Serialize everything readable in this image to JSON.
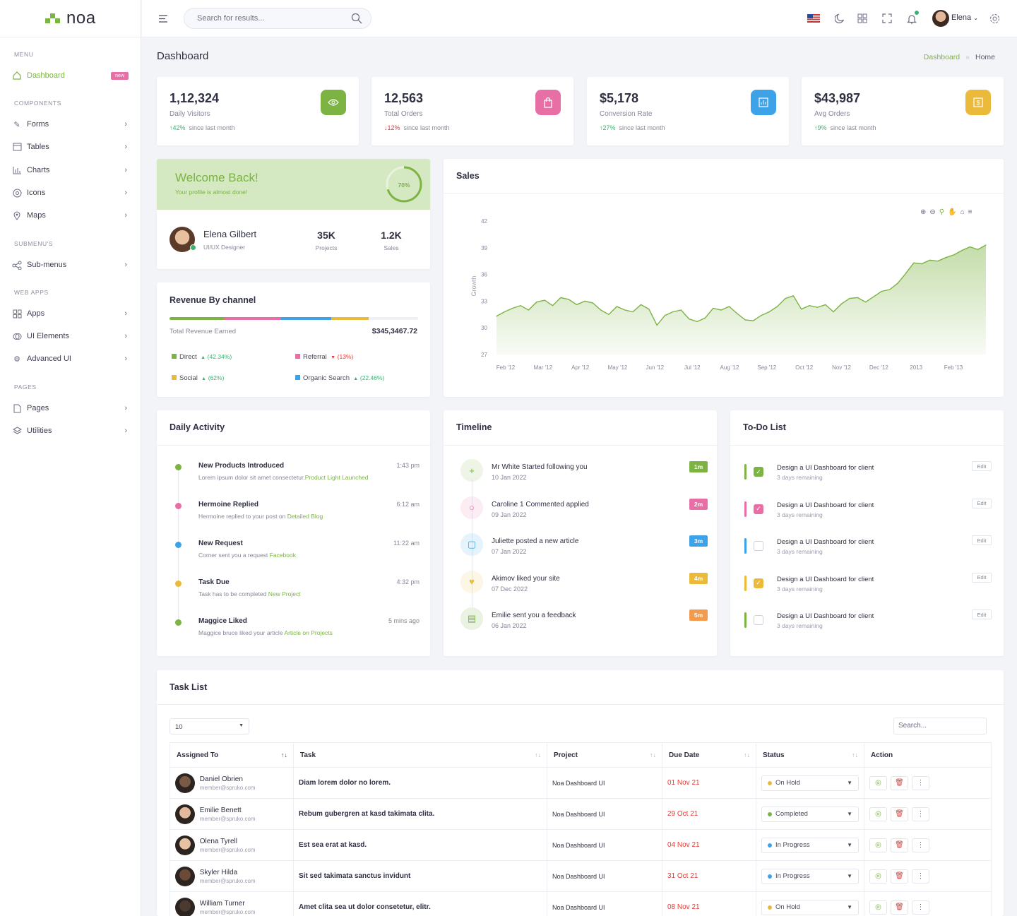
{
  "brand": {
    "name": "noa"
  },
  "sidebar": {
    "categories": [
      "MENU",
      "COMPONENTS",
      "SUBMENU'S",
      "WEB APPS",
      "PAGES"
    ],
    "items": [
      {
        "label": "Dashboard",
        "badge": "new",
        "active": true
      },
      {
        "label": "Forms"
      },
      {
        "label": "Tables"
      },
      {
        "label": "Charts"
      },
      {
        "label": "Icons"
      },
      {
        "label": "Maps"
      },
      {
        "label": "Sub-menus"
      },
      {
        "label": "Apps"
      },
      {
        "label": "UI Elements"
      },
      {
        "label": "Advanced UI"
      },
      {
        "label": "Pages"
      },
      {
        "label": "Utilities"
      }
    ]
  },
  "header": {
    "search_placeholder": "Search for results...",
    "user_name": "Elena"
  },
  "page": {
    "title": "Dashboard",
    "breadcrumb": [
      "Dashboard",
      "Home"
    ]
  },
  "stats": [
    {
      "value": "1,12,324",
      "label": "Daily Visitors",
      "trend": "42%",
      "direction": "up",
      "since": "since last month",
      "color": "#7cb342",
      "icon": "eye-icon"
    },
    {
      "value": "12,563",
      "label": "Total Orders",
      "trend": "12%",
      "direction": "down",
      "since": "since last month",
      "color": "#e86fa5",
      "icon": "bag-icon"
    },
    {
      "value": "$5,178",
      "label": "Conversion Rate",
      "trend": "27%",
      "direction": "up",
      "since": "since last month",
      "color": "#3da2e8",
      "icon": "report-icon"
    },
    {
      "value": "$43,987",
      "label": "Avg Orders",
      "trend": "9%",
      "direction": "up",
      "since": "since last month",
      "color": "#ebba3b",
      "icon": "dollar-icon"
    }
  ],
  "welcome": {
    "title": "Welcome Back!",
    "subtitle": "Your profile is almost done!",
    "progress": "70%",
    "progress_value": 0.7,
    "name": "Elena Gilbert",
    "role": "UI/UX Designer",
    "projects_value": "35K",
    "projects_label": "Projects",
    "sales_value": "1.2K",
    "sales_label": "Sales"
  },
  "revenue": {
    "title": "Revenue By channel",
    "total_label": "Total Revenue Earned",
    "total_value": "$345,3467.72",
    "channels": [
      {
        "name": "Direct",
        "change": "(42.34%)",
        "direction": "up",
        "color": "#7cb342"
      },
      {
        "name": "Referral",
        "change": "(13%)",
        "direction": "down",
        "color": "#e86fa5"
      },
      {
        "name": "Social",
        "change": "(62%)",
        "direction": "up",
        "color": "#ebba3b"
      },
      {
        "name": "Organic Search",
        "change": "(22.46%)",
        "direction": "up",
        "color": "#3da2e8"
      }
    ]
  },
  "sales": {
    "title": "Sales"
  },
  "chart_data": {
    "type": "area",
    "title": "Sales",
    "ylabel": "Growth",
    "xlabel": "",
    "x_ticks": [
      "Feb '12",
      "Mar '12",
      "Apr '12",
      "May '12",
      "Jun '12",
      "Jul '12",
      "Aug '12",
      "Sep '12",
      "Oct '12",
      "Nov '12",
      "Dec '12",
      "2013",
      "Feb '13"
    ],
    "y_ticks": [
      27,
      30,
      33,
      36,
      39,
      42
    ],
    "ylim": [
      27,
      42
    ],
    "grid": false,
    "series": [
      {
        "values": [
          31.3,
          31.8,
          32.2,
          32.5,
          32.0,
          32.9,
          33.1,
          32.5,
          33.4,
          33.2,
          32.6,
          33.0,
          32.8,
          32.0,
          31.5,
          32.4,
          32.0,
          31.8,
          32.6,
          32.1,
          30.3,
          31.4,
          31.8,
          32.0,
          31.0,
          30.7,
          31.1,
          32.2,
          32.0,
          32.4,
          31.6,
          30.9,
          30.8,
          31.4,
          31.8,
          32.4,
          33.3,
          33.6,
          32.1,
          32.5,
          32.3,
          32.6,
          31.8,
          32.7,
          33.3,
          33.4,
          32.9,
          33.5,
          34.1,
          34.3,
          35.0,
          36.1,
          37.3,
          37.2,
          37.6,
          37.5,
          37.9,
          38.2,
          38.7,
          39.1,
          38.8,
          39.3
        ]
      }
    ]
  },
  "activity": {
    "title": "Daily Activity",
    "items": [
      {
        "title": "New Products Introduced",
        "desc": "Lorem ipsum dolor sit amet consectetur.",
        "link": "Product Light Launched",
        "time": "1:43 pm",
        "color": "#7cb342"
      },
      {
        "title": "Hermoine Replied",
        "desc": "Hermoine replied to your post on ",
        "link": "Detailed Blog",
        "time": "6:12 am",
        "color": "#e86fa5"
      },
      {
        "title": "New Request",
        "desc": "Corner sent you a request ",
        "link": "Facebook",
        "time": "11:22 am",
        "color": "#3da2e8"
      },
      {
        "title": "Task Due",
        "desc": "Task has to be completed ",
        "link": "New Project",
        "time": "4:32 pm",
        "color": "#ebba3b"
      },
      {
        "title": "Maggice Liked",
        "desc": "Maggice bruce liked your article ",
        "link": "Article on Projects",
        "time": "5 mins ago",
        "color": "#7cb342"
      }
    ]
  },
  "timeline": {
    "title": "Timeline",
    "items": [
      {
        "title": "Mr White Started following you",
        "date": "10 Jan 2022",
        "badge": "1m",
        "color": "#7cb342",
        "icon": "user-plus-icon",
        "glyph": "+"
      },
      {
        "title": "Caroline 1 Commented applied",
        "date": "09 Jan 2022",
        "badge": "2m",
        "color": "#e86fa5",
        "icon": "comment-icon",
        "glyph": "○"
      },
      {
        "title": "Juliette posted a new article",
        "date": "07 Jan 2022",
        "badge": "3m",
        "color": "#3da2e8",
        "icon": "clipboard-icon",
        "glyph": "▢"
      },
      {
        "title": "Akimov liked your site",
        "date": "07 Dec 2022",
        "badge": "4m",
        "color": "#ebba3b",
        "icon": "thumbs-up-icon",
        "glyph": "♥"
      },
      {
        "title": "Emilie sent you a feedback",
        "date": "06 Jan 2022",
        "badge": "5m",
        "color": "#f29a4e",
        "icon": "book-icon",
        "glyph": "▤",
        "bg": "#7cb342"
      }
    ]
  },
  "todo": {
    "title": "To-Do List",
    "items": [
      {
        "title": "Design a UI Dashboard for client",
        "sub": "3 days remaining",
        "checked": true,
        "color": "#7cb342",
        "edit": "Edit"
      },
      {
        "title": "Design a UI Dashboard for client",
        "sub": "3 days remaining",
        "checked": true,
        "color": "#e86fa5",
        "edit": "Edit"
      },
      {
        "title": "Design a UI Dashboard for client",
        "sub": "3 days remaining",
        "checked": false,
        "color": "#3da2e8",
        "edit": "Edit"
      },
      {
        "title": "Design a UI Dashboard for client",
        "sub": "3 days remaining",
        "checked": true,
        "color": "#ebba3b",
        "edit": "Edit"
      },
      {
        "title": "Design a UI Dashboard for client",
        "sub": "3 days remaining",
        "checked": false,
        "color": "#7cb342",
        "edit": "Edit"
      }
    ]
  },
  "tasks": {
    "title": "Task List",
    "page_size": "10",
    "search_placeholder": "Search...",
    "columns": [
      "Assigned To",
      "Task",
      "Project",
      "Due Date",
      "Status",
      "Action"
    ],
    "rows": [
      {
        "name": "Daniel Obrien",
        "email": "member@spruko.com",
        "task": "Diam lorem dolor no lorem.",
        "project": "Noa Dashboard UI",
        "due": "01 Nov 21",
        "status": "On Hold",
        "status_color": "#ebba3b"
      },
      {
        "name": "Emilie Benett",
        "email": "member@spruko.com",
        "task": "Rebum gubergren at kasd takimata clita.",
        "project": "Noa Dashboard UI",
        "due": "29 Oct 21",
        "status": "Completed",
        "status_color": "#7cb342"
      },
      {
        "name": "Olena Tyrell",
        "email": "member@spruko.com",
        "task": "Est sea erat at kasd.",
        "project": "Noa Dashboard UI",
        "due": "04 Nov 21",
        "status": "In Progress",
        "status_color": "#3da2e8"
      },
      {
        "name": "Skyler Hilda",
        "email": "member@spruko.com",
        "task": "Sit sed takimata sanctus invidunt",
        "project": "Noa Dashboard UI",
        "due": "31 Oct 21",
        "status": "In Progress",
        "status_color": "#3da2e8"
      },
      {
        "name": "William Turner",
        "email": "member@spruko.com",
        "task": "Amet clita sea ut dolor consetetur, elitr.",
        "project": "Noa Dashboard UI",
        "due": "08 Nov 21",
        "status": "On Hold",
        "status_color": "#ebba3b"
      }
    ]
  }
}
